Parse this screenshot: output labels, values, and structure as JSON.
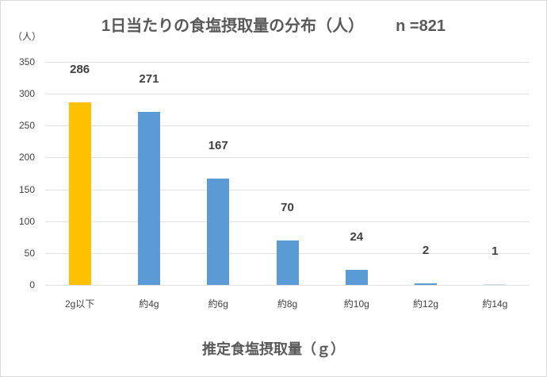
{
  "chart_data": {
    "type": "bar",
    "title": "1日当たりの食塩摂取量の分布（人）",
    "subtitle": "n =821",
    "xlabel": "推定食塩摂取量（ｇ）",
    "ylabel": "（人）",
    "categories": [
      "2g以下",
      "約4g",
      "約6g",
      "約8g",
      "約10g",
      "約12g",
      "約14g"
    ],
    "values": [
      286,
      271,
      167,
      70,
      24,
      2,
      1
    ],
    "bar_colors": [
      "#ffc000",
      "#5b9bd5",
      "#5b9bd5",
      "#5b9bd5",
      "#5b9bd5",
      "#5b9bd5",
      "#5b9bd5"
    ],
    "ylim": [
      0,
      350
    ],
    "yticks": [
      0,
      50,
      100,
      150,
      200,
      250,
      300,
      350
    ],
    "grid": true,
    "data_labels": true,
    "legend": "none"
  },
  "labels": {
    "title": "1日当たりの食塩摂取量の分布（人）",
    "n": "n =821",
    "yunit": "（人）",
    "xlabel": "推定食塩摂取量（ｇ）"
  }
}
